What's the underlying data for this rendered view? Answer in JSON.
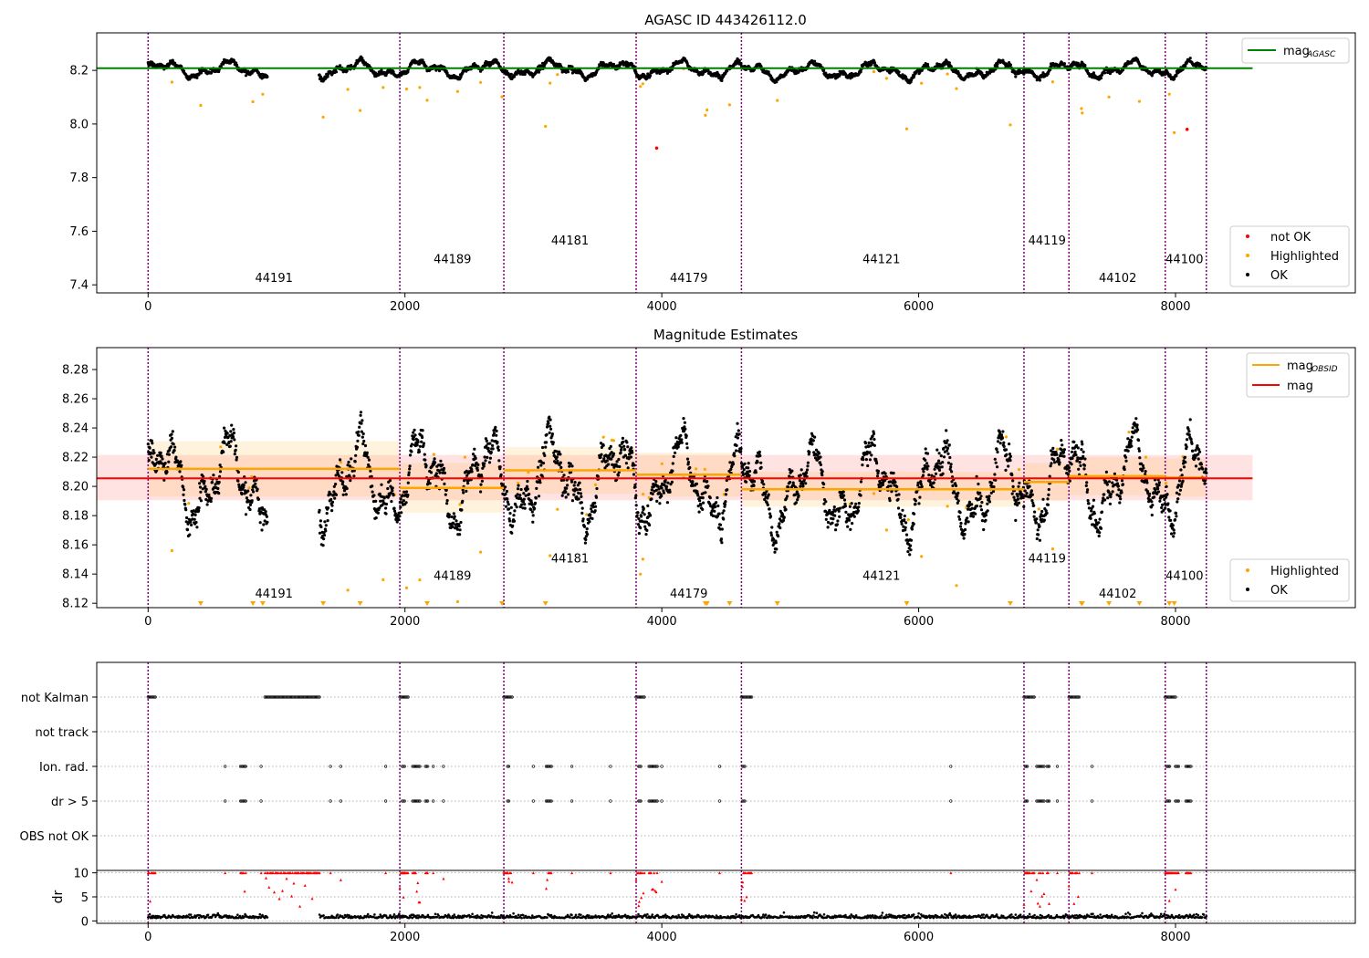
{
  "chart_data": [
    {
      "type": "scatter",
      "title": "AGASC ID 443426112.0",
      "xlim": [
        -400,
        9400
      ],
      "ylim": [
        7.37,
        8.34
      ],
      "xticks": [
        0,
        2000,
        4000,
        6000,
        8000
      ],
      "yticks": [
        7.4,
        7.6,
        7.8,
        8.0,
        8.2
      ],
      "ytick_labels": [
        "7.4",
        "7.6",
        "7.8",
        "8.0",
        "8.2"
      ],
      "mag_agasc": 8.208,
      "mag_agasc_range": [
        -400,
        8600
      ],
      "legend_upper": {
        "label_main": "mag",
        "label_sub": "AGASC",
        "color": "#008000",
        "position": "top-right"
      },
      "legend_lower": {
        "position": "bottom-right",
        "entries": [
          {
            "label": "not OK",
            "color": "#ff0000"
          },
          {
            "label": "Highlighted",
            "color": "#ffa500"
          },
          {
            "label": "OK",
            "color": "#000000"
          }
        ]
      },
      "obsid_labels": [
        {
          "text": "44191",
          "x": 980,
          "y": 7.41
        },
        {
          "text": "44189",
          "x": 2370,
          "y": 7.48
        },
        {
          "text": "44181",
          "x": 3285,
          "y": 7.55
        },
        {
          "text": "44179",
          "x": 4210,
          "y": 7.41
        },
        {
          "text": "44121",
          "x": 5710,
          "y": 7.48
        },
        {
          "text": "44119",
          "x": 7000,
          "y": 7.55
        },
        {
          "text": "44102",
          "x": 7550,
          "y": 7.41
        },
        {
          "text": "44100",
          "x": 8070,
          "y": 7.48
        }
      ]
    },
    {
      "type": "scatter",
      "title": "Magnitude Estimates",
      "xlim": [
        -400,
        9400
      ],
      "ylim": [
        8.117,
        8.295
      ],
      "xticks": [
        0,
        2000,
        4000,
        6000,
        8000
      ],
      "yticks": [
        8.12,
        8.14,
        8.16,
        8.18,
        8.2,
        8.22,
        8.24,
        8.26,
        8.28
      ],
      "ytick_labels": [
        "8.12",
        "8.14",
        "8.16",
        "8.18",
        "8.20",
        "8.22",
        "8.24",
        "8.26",
        "8.28"
      ],
      "mag": {
        "value": 8.2055,
        "band": [
          8.1905,
          8.2215
        ],
        "range": [
          -400,
          8600
        ],
        "color": "#ff0000"
      },
      "mag_obsid": [
        {
          "x0": 0,
          "x1": 1960,
          "value": 8.212,
          "band": [
            8.193,
            8.231
          ]
        },
        {
          "x0": 1960,
          "x1": 2770,
          "value": 8.199,
          "band": [
            8.182,
            8.216
          ]
        },
        {
          "x0": 2770,
          "x1": 3800,
          "value": 8.211,
          "band": [
            8.195,
            8.227
          ]
        },
        {
          "x0": 3800,
          "x1": 4620,
          "value": 8.208,
          "band": [
            8.193,
            8.223
          ]
        },
        {
          "x0": 4620,
          "x1": 6820,
          "value": 8.198,
          "band": [
            8.186,
            8.21
          ]
        },
        {
          "x0": 6820,
          "x1": 7170,
          "value": 8.203,
          "band": [
            8.19,
            8.216
          ]
        },
        {
          "x0": 7170,
          "x1": 7920,
          "value": 8.207,
          "band": [
            8.194,
            8.22
          ]
        },
        {
          "x0": 7920,
          "x1": 8240,
          "value": 8.206,
          "band": [
            8.193,
            8.219
          ]
        }
      ],
      "legend_upper": {
        "position": "top-right",
        "entries": [
          {
            "label_main": "mag",
            "label_sub": "OBSID",
            "color": "#ffa500"
          },
          {
            "label_main": "mag",
            "label_sub": "",
            "color": "#ff0000"
          }
        ]
      },
      "legend_lower": {
        "position": "bottom-right",
        "entries": [
          {
            "label": "Highlighted",
            "color": "#ffa500"
          },
          {
            "label": "OK",
            "color": "#000000"
          }
        ]
      },
      "obsid_labels": [
        {
          "text": "44191",
          "x": 980,
          "y": 8.124
        },
        {
          "text": "44189",
          "x": 2370,
          "y": 8.136
        },
        {
          "text": "44181",
          "x": 3285,
          "y": 8.148
        },
        {
          "text": "44179",
          "x": 4210,
          "y": 8.124
        },
        {
          "text": "44121",
          "x": 5710,
          "y": 8.136
        },
        {
          "text": "44119",
          "x": 7000,
          "y": 8.148
        },
        {
          "text": "44102",
          "x": 7550,
          "y": 8.124
        },
        {
          "text": "44100",
          "x": 8070,
          "y": 8.136
        }
      ]
    },
    {
      "type": "scatter",
      "xlim": [
        -400,
        9400
      ],
      "xticks": [
        0,
        2000,
        4000,
        6000,
        8000
      ],
      "flag_rows": [
        "not Kalman",
        "not track",
        "Ion. rad.",
        "dr > 5",
        "OBS not OK"
      ],
      "flag_segments": {
        "not Kalman": [
          [
            0,
            60
          ],
          [
            910,
            1340
          ],
          [
            1960,
            2030
          ],
          [
            2770,
            2840
          ],
          [
            3800,
            3870
          ],
          [
            4620,
            4700
          ],
          [
            6820,
            6900
          ],
          [
            7170,
            7250
          ],
          [
            7920,
            8000
          ]
        ],
        "Ion. rad.": [
          [
            600,
            600
          ],
          [
            720,
            760
          ],
          [
            880,
            880
          ],
          [
            1420,
            1420
          ],
          [
            1500,
            1500
          ],
          [
            1850,
            1850
          ],
          [
            1980,
            2000
          ],
          [
            2060,
            2120
          ],
          [
            2160,
            2180
          ],
          [
            2220,
            2220
          ],
          [
            2300,
            2300
          ],
          [
            2800,
            2810
          ],
          [
            3000,
            3000
          ],
          [
            3100,
            3140
          ],
          [
            3300,
            3300
          ],
          [
            3600,
            3600
          ],
          [
            3820,
            3840
          ],
          [
            3900,
            3970
          ],
          [
            4000,
            4000
          ],
          [
            4450,
            4450
          ],
          [
            4630,
            4650
          ],
          [
            6250,
            6250
          ],
          [
            6830,
            6850
          ],
          [
            6920,
            6980
          ],
          [
            7000,
            7020
          ],
          [
            7080,
            7080
          ],
          [
            7350,
            7350
          ],
          [
            7930,
            7960
          ],
          [
            8000,
            8030
          ],
          [
            8080,
            8120
          ]
        ],
        "dr > 5": [
          [
            600,
            600
          ],
          [
            720,
            760
          ],
          [
            880,
            880
          ],
          [
            1420,
            1420
          ],
          [
            1500,
            1500
          ],
          [
            1850,
            1850
          ],
          [
            1980,
            2000
          ],
          [
            2060,
            2120
          ],
          [
            2160,
            2180
          ],
          [
            2220,
            2220
          ],
          [
            2300,
            2300
          ],
          [
            2800,
            2810
          ],
          [
            3000,
            3000
          ],
          [
            3100,
            3140
          ],
          [
            3300,
            3300
          ],
          [
            3600,
            3600
          ],
          [
            3820,
            3840
          ],
          [
            3900,
            3970
          ],
          [
            4000,
            4000
          ],
          [
            4450,
            4450
          ],
          [
            4630,
            4650
          ],
          [
            6250,
            6250
          ],
          [
            6830,
            6850
          ],
          [
            6920,
            6980
          ],
          [
            7000,
            7020
          ],
          [
            7080,
            7080
          ],
          [
            7350,
            7350
          ],
          [
            7930,
            7960
          ],
          [
            8000,
            8030
          ],
          [
            8080,
            8120
          ]
        ]
      },
      "dr_ylabel": "dr",
      "dr_ylim": [
        -0.5,
        10.5
      ],
      "dr_yticks": [
        0,
        5,
        10
      ],
      "dr_ytick_labels": [
        "0",
        "5",
        "10"
      ]
    }
  ],
  "obsid_boundaries": [
    0,
    1960,
    2770,
    3800,
    4620,
    6820,
    7170,
    7920,
    8240
  ],
  "data_gaps": [
    [
      930,
      1330
    ]
  ],
  "colors": {
    "ok": "#000000",
    "highlighted": "#ffa500",
    "not_ok": "#ff0000",
    "agasc_line": "#008000",
    "boundary": "#800080",
    "dr_flag": "#ff0000"
  }
}
